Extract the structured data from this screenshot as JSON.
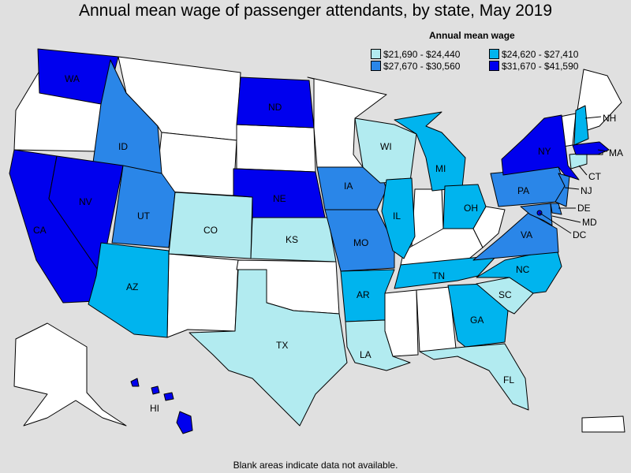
{
  "title": "Annual mean wage of passenger attendants, by state, May 2019",
  "legend": {
    "title": "Annual mean wage",
    "items": [
      {
        "label": "$21,690 - $24,440",
        "color": "#b2ebf0"
      },
      {
        "label": "$24,620 - $27,410",
        "color": "#00b4ee"
      },
      {
        "label": "$27,670 - $30,560",
        "color": "#2a86e8"
      },
      {
        "label": "$31,670 - $41,590",
        "color": "#0000ee"
      }
    ]
  },
  "footnote": "Blank areas indicate data not available.",
  "states": [
    {
      "abbr": "WA",
      "bin": 4
    },
    {
      "abbr": "ID",
      "bin": 3
    },
    {
      "abbr": "CA",
      "bin": 4
    },
    {
      "abbr": "NV",
      "bin": 4
    },
    {
      "abbr": "UT",
      "bin": 3
    },
    {
      "abbr": "AZ",
      "bin": 2
    },
    {
      "abbr": "CO",
      "bin": 1
    },
    {
      "abbr": "ND",
      "bin": 4
    },
    {
      "abbr": "NE",
      "bin": 4
    },
    {
      "abbr": "KS",
      "bin": 1
    },
    {
      "abbr": "TX",
      "bin": 1
    },
    {
      "abbr": "IA",
      "bin": 3
    },
    {
      "abbr": "MO",
      "bin": 3
    },
    {
      "abbr": "AR",
      "bin": 2
    },
    {
      "abbr": "LA",
      "bin": 1
    },
    {
      "abbr": "WI",
      "bin": 1
    },
    {
      "abbr": "IL",
      "bin": 2
    },
    {
      "abbr": "MI",
      "bin": 2
    },
    {
      "abbr": "OH",
      "bin": 2
    },
    {
      "abbr": "TN",
      "bin": 2
    },
    {
      "abbr": "GA",
      "bin": 2
    },
    {
      "abbr": "FL",
      "bin": 1
    },
    {
      "abbr": "SC",
      "bin": 1
    },
    {
      "abbr": "NC",
      "bin": 2
    },
    {
      "abbr": "VA",
      "bin": 3
    },
    {
      "abbr": "PA",
      "bin": 3
    },
    {
      "abbr": "NY",
      "bin": 4
    },
    {
      "abbr": "NJ",
      "bin": 3
    },
    {
      "abbr": "DE",
      "bin": 3
    },
    {
      "abbr": "MD",
      "bin": 3
    },
    {
      "abbr": "DC",
      "bin": 4
    },
    {
      "abbr": "CT",
      "bin": 1
    },
    {
      "abbr": "MA",
      "bin": 4
    },
    {
      "abbr": "NH",
      "bin": 2
    },
    {
      "abbr": "HI",
      "bin": 4
    }
  ]
}
